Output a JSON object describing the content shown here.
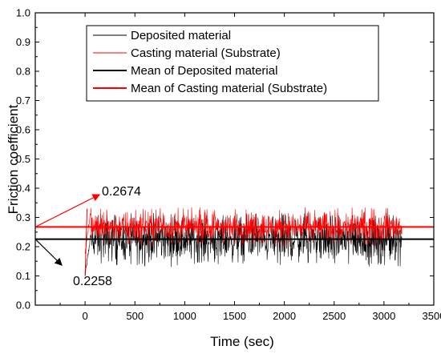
{
  "chart_data": {
    "type": "line",
    "xlabel": "Time (sec)",
    "ylabel": "Friction coefficient",
    "xlim": [
      -500,
      3500
    ],
    "ylim": [
      0.0,
      1.0
    ],
    "x_ticks": [
      0,
      500,
      1000,
      1500,
      2000,
      2500,
      3000,
      3500
    ],
    "x_tick_labels": [
      "0",
      "500",
      "1000",
      "1500",
      "2000",
      "2500",
      "3000",
      "3500"
    ],
    "y_ticks": [
      0.0,
      0.1,
      0.2,
      0.3,
      0.4,
      0.5,
      0.6,
      0.7,
      0.8,
      0.9,
      1.0
    ],
    "y_tick_labels": [
      "0.0",
      "0.1",
      "0.2",
      "0.3",
      "0.4",
      "0.5",
      "0.6",
      "0.7",
      "0.8",
      "0.9",
      "1.0"
    ],
    "grid": false,
    "legend_position": "top-center",
    "series": [
      {
        "name": "Deposited material",
        "color": "#000000",
        "style": "thin",
        "x_range": [
          0,
          3180
        ],
        "mean": 0.2258,
        "band": [
          0.14,
          0.31
        ],
        "start_value": 0.1
      },
      {
        "name": "Casting material (Substrate)",
        "color": "#ff0000",
        "style": "thin",
        "x_range": [
          0,
          3180
        ],
        "mean": 0.2674,
        "band": [
          0.21,
          0.33
        ],
        "start_value": 0.18,
        "start_peak": 0.33
      },
      {
        "name": "Mean of Deposited material",
        "color": "#000000",
        "style": "thick",
        "value": 0.2258
      },
      {
        "name": "Mean of Casting material (Substrate)",
        "color": "#ff0000",
        "style": "thick",
        "value": 0.2674
      }
    ],
    "annotations": [
      {
        "text": "0.2674",
        "color": "#ff0000",
        "points_to": [
          -500,
          0.2674
        ]
      },
      {
        "text": "0.2258",
        "color": "#000000",
        "points_to": [
          -500,
          0.2258
        ]
      }
    ]
  }
}
